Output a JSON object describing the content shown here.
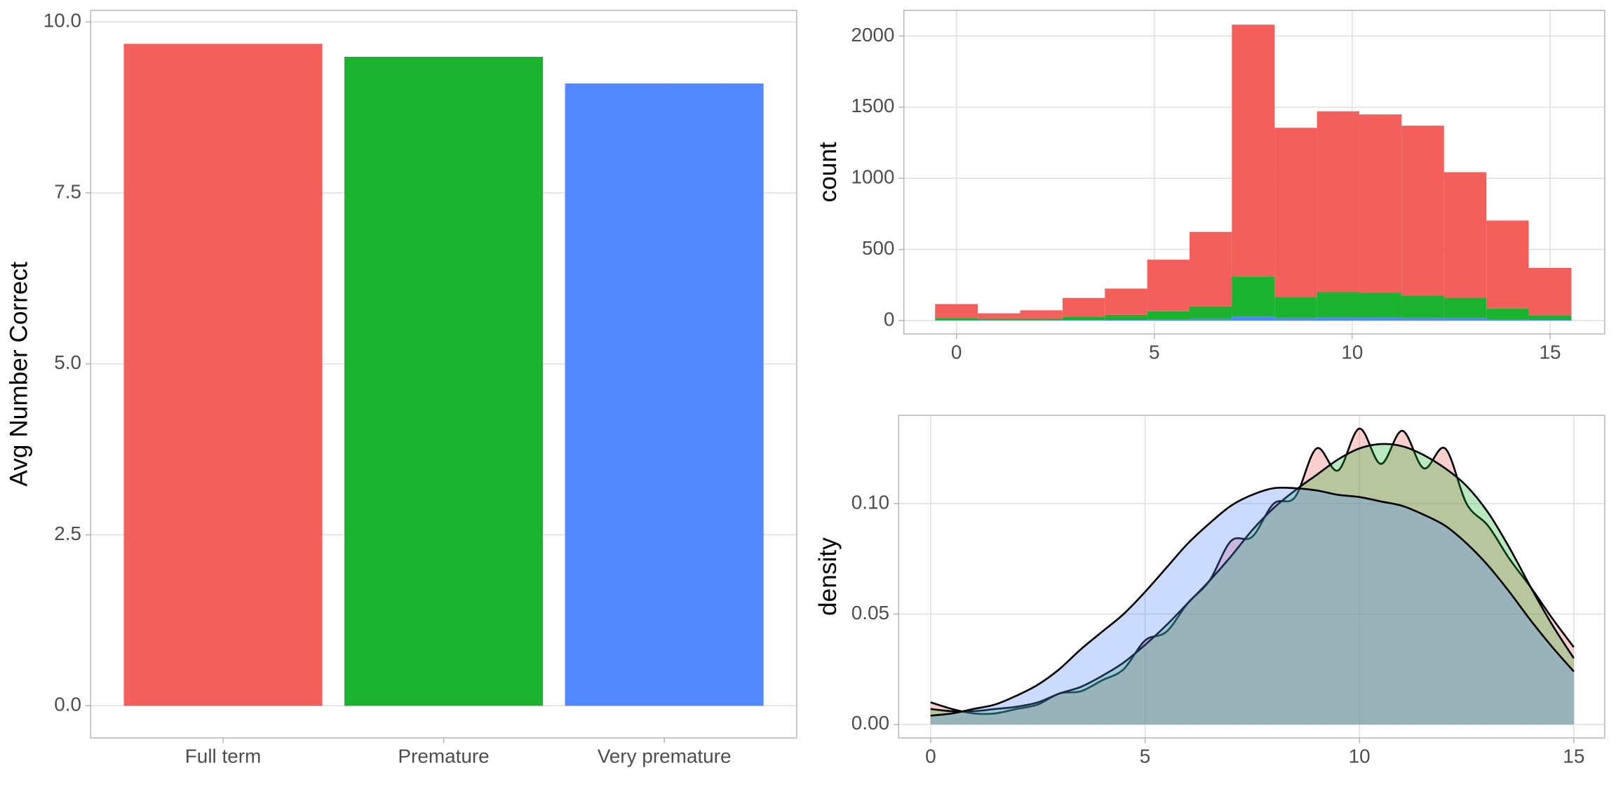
{
  "chart_data": [
    {
      "type": "bar",
      "ylabel": "Avg Number Correct",
      "categories": [
        "Full term",
        "Premature",
        "Very premature"
      ],
      "values": [
        9.68,
        9.49,
        9.1
      ],
      "colors": [
        "#f35f5a",
        "#1ab22f",
        "#5288ff"
      ],
      "ylim": [
        -0.47,
        10.17
      ],
      "yticks": [
        {
          "value": 0,
          "label": "0.0"
        },
        {
          "value": 2.5,
          "label": "2.5"
        },
        {
          "value": 5,
          "label": "5.0"
        },
        {
          "value": 7.5,
          "label": "7.5"
        },
        {
          "value": 10,
          "label": "10.0"
        }
      ],
      "grid": true
    },
    {
      "type": "histogram",
      "ylabel": "count",
      "bins": [
        -0.54,
        0.54,
        1.61,
        2.68,
        3.75,
        4.82,
        5.89,
        6.96,
        8.04,
        9.11,
        10.18,
        11.25,
        12.32,
        13.39,
        14.46,
        15.54
      ],
      "series": [
        {
          "name": "Full term",
          "color": "#f35f5a",
          "values": [
            101,
            39,
            60,
            134,
            185,
            363,
            523,
            1770,
            1190,
            1271,
            1254,
            1195,
            883,
            618,
            335
          ]
        },
        {
          "name": "Premature",
          "color": "#1ab22f",
          "values": [
            13,
            10,
            10,
            22,
            35,
            57,
            88,
            280,
            145,
            178,
            173,
            155,
            142,
            75,
            30
          ]
        },
        {
          "name": "Very premature",
          "color": "#5288ff",
          "values": [
            2,
            2,
            2,
            3,
            5,
            8,
            12,
            30,
            20,
            22,
            22,
            20,
            18,
            10,
            5
          ]
        }
      ],
      "stacked": true,
      "xlim": [
        -1.33,
        16.38
      ],
      "xticks": [
        0,
        5,
        10,
        15
      ],
      "ylim": [
        -94,
        2181
      ],
      "yticks": [
        0,
        500,
        1000,
        1500,
        2000
      ],
      "grid": true
    },
    {
      "type": "density",
      "ylabel": "density",
      "x": [
        0,
        0.5,
        1,
        1.5,
        2,
        2.5,
        3,
        3.5,
        4,
        4.5,
        5,
        5.5,
        6,
        6.5,
        7,
        7.5,
        8,
        8.5,
        9,
        9.5,
        10,
        10.5,
        11,
        11.5,
        12,
        12.5,
        13,
        13.5,
        14,
        14.5,
        15
      ],
      "series": [
        {
          "name": "Full term",
          "color": "#f35f5a",
          "values": [
            0.01,
            0.007,
            0.005,
            0.005,
            0.007,
            0.009,
            0.014,
            0.015,
            0.02,
            0.025,
            0.038,
            0.042,
            0.055,
            0.065,
            0.083,
            0.085,
            0.1,
            0.103,
            0.125,
            0.115,
            0.134,
            0.118,
            0.133,
            0.116,
            0.125,
            0.1,
            0.09,
            0.075,
            0.062,
            0.048,
            0.035
          ]
        },
        {
          "name": "Premature",
          "color": "#1ab22f",
          "values": [
            0.007,
            0.006,
            0.006,
            0.007,
            0.008,
            0.01,
            0.014,
            0.017,
            0.022,
            0.028,
            0.036,
            0.045,
            0.055,
            0.065,
            0.076,
            0.088,
            0.098,
            0.106,
            0.113,
            0.12,
            0.125,
            0.127,
            0.126,
            0.122,
            0.116,
            0.108,
            0.096,
            0.08,
            0.062,
            0.045,
            0.03
          ]
        },
        {
          "name": "Very premature",
          "color": "#5288ff",
          "values": [
            0.004,
            0.005,
            0.007,
            0.009,
            0.013,
            0.018,
            0.025,
            0.034,
            0.042,
            0.05,
            0.06,
            0.071,
            0.082,
            0.091,
            0.099,
            0.104,
            0.107,
            0.107,
            0.106,
            0.104,
            0.103,
            0.101,
            0.099,
            0.095,
            0.09,
            0.082,
            0.072,
            0.06,
            0.047,
            0.035,
            0.024
          ]
        }
      ],
      "fill_opacity": 0.3,
      "xlim": [
        -0.745,
        15.72
      ],
      "xticks": [
        0,
        5,
        10,
        15
      ],
      "ylim": [
        -0.0061,
        0.14
      ],
      "yticks": [
        {
          "value": 0,
          "label": "0.00"
        },
        {
          "value": 0.05,
          "label": "0.05"
        },
        {
          "value": 0.1,
          "label": "0.10"
        }
      ],
      "grid": true
    }
  ]
}
